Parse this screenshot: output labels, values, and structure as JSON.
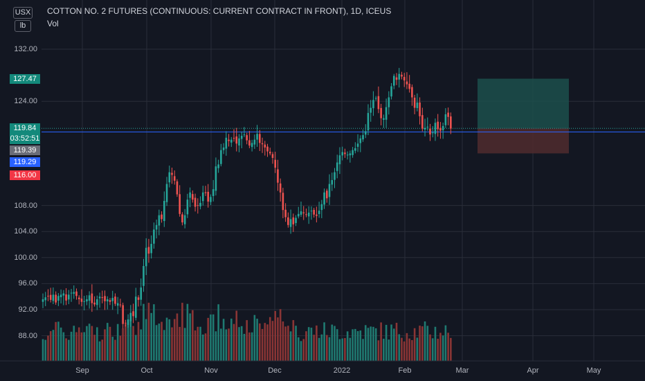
{
  "header": {
    "title": "COTTON NO. 2 FUTURES (CONTINUOUS: CURRENT CONTRACT IN FRONT), 1D, ICEUS",
    "volume_label": "Vol",
    "currency_chip": "USX",
    "unit_chip": "lb"
  },
  "price_tags": {
    "target": "127.47",
    "last": "119.84",
    "countdown": "03:52:51",
    "gray": "119.39",
    "blue": "119.29",
    "stop": "116.00"
  },
  "colors": {
    "background": "#131722",
    "grid": "#2a2e39",
    "up": "#26a69a",
    "down": "#ef5350",
    "up_volume": "#1f7a71",
    "down_volume": "#8a3535",
    "blue_line": "#2962ff",
    "target_zone": "#1c4f4b",
    "stop_zone": "#4d2a2e"
  },
  "chart_data": {
    "type": "candlestick",
    "title": "COTTON NO. 2 FUTURES (CONTINUOUS: CURRENT CONTRACT IN FRONT), 1D, ICEUS",
    "interval": "1D",
    "y_unit": "USX/lb",
    "ylim": [
      83.5,
      136
    ],
    "y_ticks": [
      "132.00",
      "124.00",
      "108.00",
      "104.00",
      "100.00",
      "96.00",
      "92.00",
      "88.00"
    ],
    "x_ticks": [
      "Sep",
      "Oct",
      "Nov",
      "Dec",
      "2022",
      "Feb",
      "Mar",
      "Apr",
      "May"
    ],
    "closes": [
      93.6,
      93.9,
      94.1,
      93.5,
      94.3,
      93.1,
      94.1,
      94.3,
      94.5,
      93.4,
      94.3,
      94.6,
      94.7,
      94.1,
      93.6,
      93.2,
      93.3,
      93.6,
      94.2,
      93.0,
      92.8,
      93.6,
      94.0,
      93.8,
      93.3,
      93.6,
      93.2,
      93.8,
      92.9,
      93.0,
      92.7,
      89.8,
      89.9,
      90.5,
      91.5,
      91.0,
      94.0,
      93.5,
      95.4,
      98.7,
      101.5,
      100.6,
      102.1,
      104.3,
      105.0,
      106.5,
      105.9,
      108.7,
      111.3,
      113.1,
      112.7,
      111.8,
      109.7,
      106.7,
      105.4,
      106.5,
      108.9,
      110.0,
      108.9,
      107.8,
      108.0,
      108.4,
      110.0,
      109.9,
      108.6,
      109.3,
      110.5,
      114.0,
      114.3,
      116.5,
      116.9,
      118.4,
      117.9,
      118.1,
      118.3,
      117.5,
      118.3,
      118.7,
      118.9,
      118.0,
      117.2,
      117.6,
      118.1,
      119.0,
      117.6,
      117.4,
      116.9,
      116.3,
      116.0,
      115.3,
      113.8,
      111.5,
      110.0,
      107.3,
      106.2,
      105.0,
      105.9,
      105.1,
      106.1,
      106.7,
      107.1,
      106.8,
      106.6,
      106.9,
      107.2,
      106.6,
      106.4,
      107.2,
      108.2,
      110.0,
      109.1,
      111.3,
      111.9,
      113.1,
      114.6,
      115.7,
      116.2,
      115.9,
      115.8,
      116.0,
      116.5,
      116.8,
      117.5,
      118.3,
      118.8,
      119.4,
      122.2,
      123.0,
      124.2,
      124.5,
      122.8,
      121.4,
      121.4,
      123.1,
      124.6,
      126.3,
      127.9,
      127.3,
      128.2,
      127.8,
      127.2,
      126.6,
      125.9,
      124.6,
      123.0,
      123.8,
      121.7,
      119.8,
      119.9,
      120.1,
      118.9,
      119.2,
      120.7,
      119.7,
      119.5,
      120.2,
      122.0,
      121.6,
      119.8
    ],
    "volume_direction": "same as candle color (green = up day, red = down day)"
  },
  "trade_setup": {
    "type": "long position",
    "entry": 119.84,
    "target": 127.47,
    "stop": 116.0
  }
}
